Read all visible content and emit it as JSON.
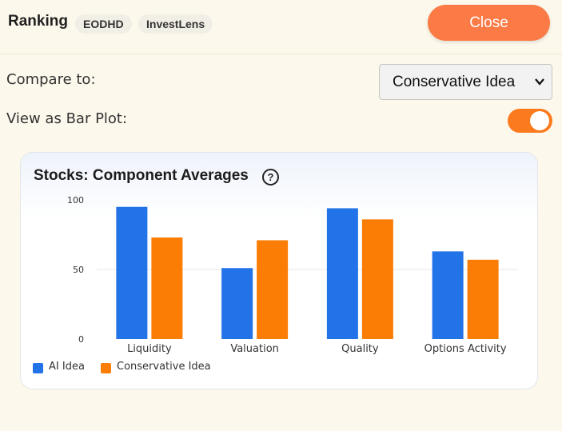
{
  "header": {
    "title": "Ranking",
    "badges": [
      "EODHD",
      "InvestLens"
    ],
    "close_label": "Close"
  },
  "controls": {
    "compare_label": "Compare to:",
    "compare_value": "Conservative Idea",
    "bar_plot_label": "View as Bar Plot:",
    "bar_plot_on": true
  },
  "card": {
    "title": "Stocks: Component Averages",
    "help_icon": "question-circle-icon"
  },
  "colors": {
    "accent": "#fb7a45",
    "toggle": "#fb7a1e",
    "series_ai": "#2272e8",
    "series_conservative": "#fb7d06"
  },
  "chart_data": {
    "type": "bar",
    "title": "Stocks: Component Averages",
    "categories": [
      "Liquidity",
      "Valuation",
      "Quality",
      "Options Activity"
    ],
    "series": [
      {
        "name": "AI Idea",
        "values": [
          95,
          51,
          94,
          63
        ]
      },
      {
        "name": "Conservative Idea",
        "values": [
          73,
          71,
          86,
          57
        ]
      }
    ],
    "yticks": [
      "0",
      "50",
      "100"
    ],
    "ylim": [
      0,
      100
    ],
    "grid": true,
    "legend": "bottom-left"
  }
}
